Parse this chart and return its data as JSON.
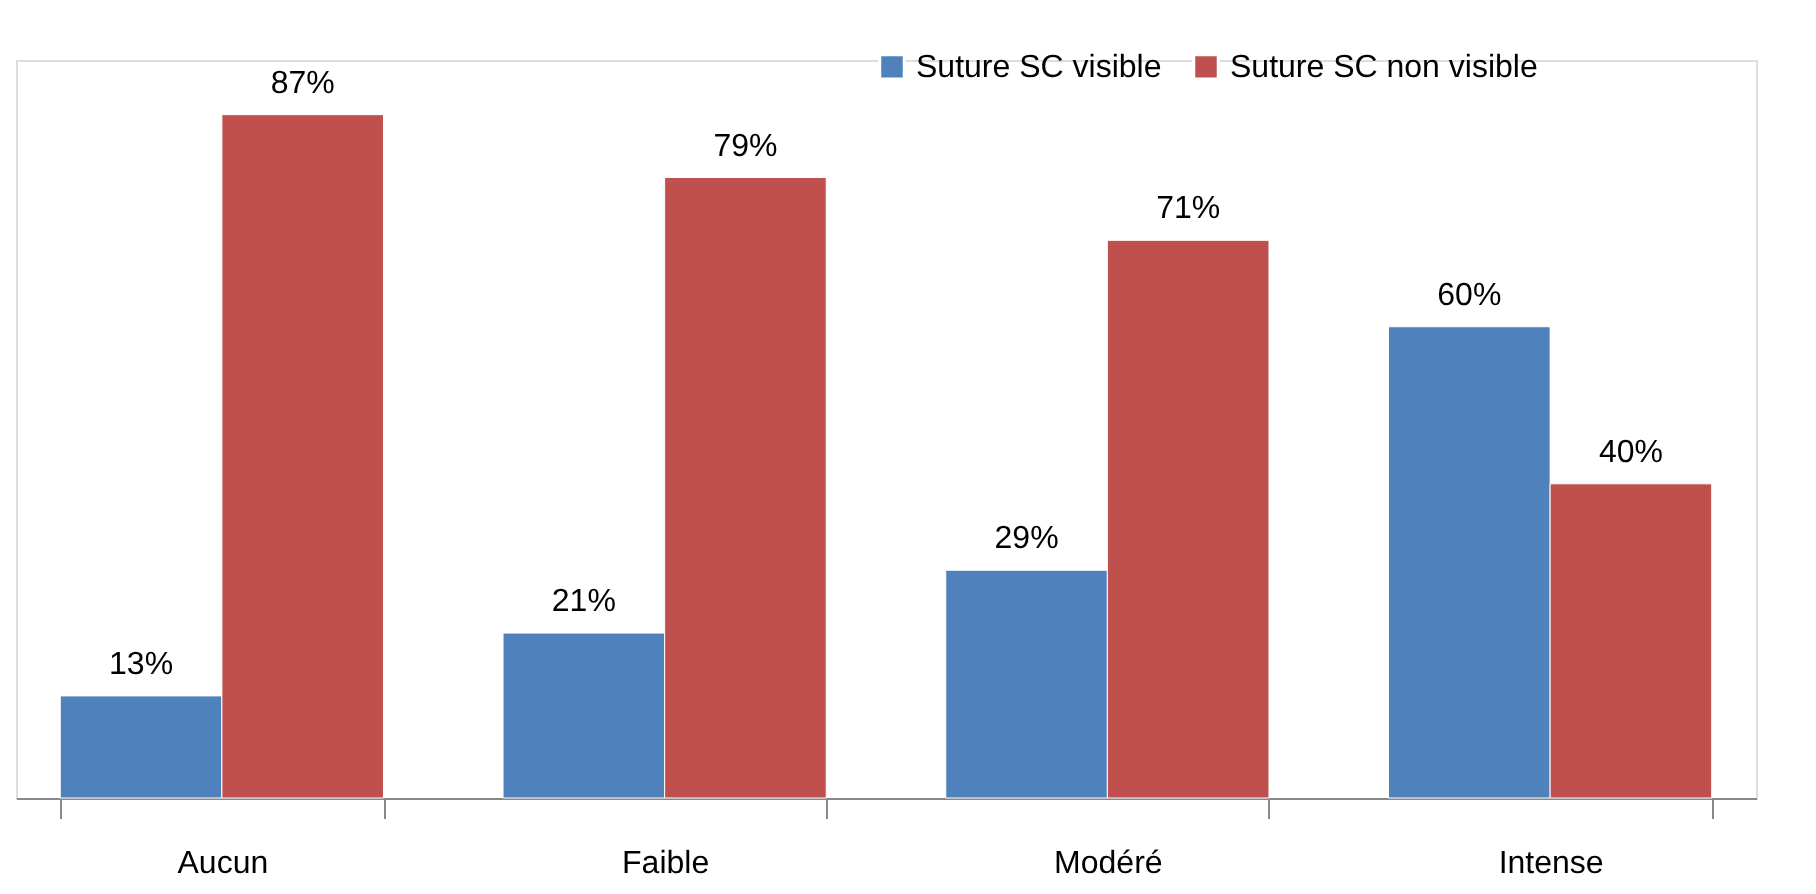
{
  "chart_data": {
    "type": "bar",
    "categories": [
      "Aucun",
      "Faible",
      "Modéré",
      "Intense"
    ],
    "series": [
      {
        "name": "Suture SC visible",
        "color": "#4f81bd",
        "values": [
          13,
          21,
          29,
          60
        ],
        "value_labels": [
          "13%",
          "21%",
          "29%",
          "60%"
        ]
      },
      {
        "name": "Suture SC non visible",
        "color": "#c0504d",
        "values": [
          87,
          79,
          71,
          40
        ],
        "value_labels": [
          "87%",
          "79%",
          "71%",
          "40%"
        ]
      }
    ],
    "legend": "top right",
    "grid": false
  }
}
